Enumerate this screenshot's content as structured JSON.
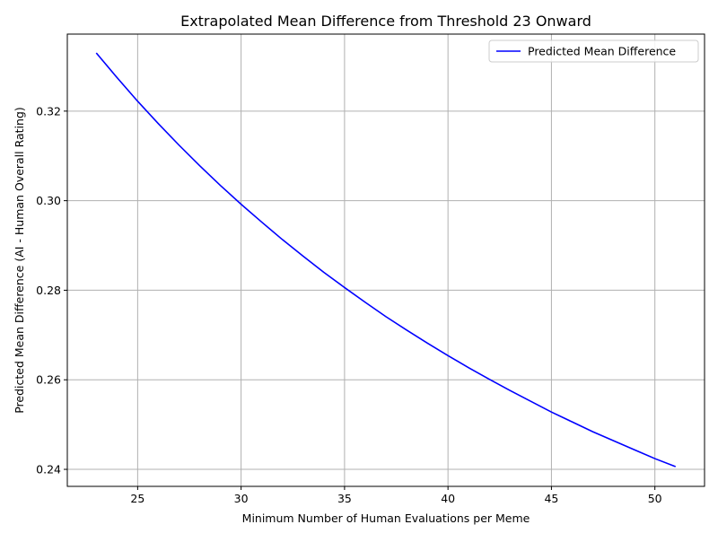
{
  "chart_data": {
    "type": "line",
    "title": "Extrapolated Mean Difference from Threshold 23 Onward",
    "xlabel": "Minimum Number of Human Evaluations per Meme",
    "ylabel": "Predicted Mean Difference (AI - Human Overall Rating)",
    "xlim": [
      21.6,
      52.4
    ],
    "ylim": [
      0.2362,
      0.3372
    ],
    "x_ticks": [
      25,
      30,
      35,
      40,
      45,
      50
    ],
    "y_ticks": [
      0.24,
      0.26,
      0.28,
      0.3,
      0.32
    ],
    "x_tick_labels": [
      "25",
      "30",
      "35",
      "40",
      "45",
      "50"
    ],
    "y_tick_labels": [
      "0.24",
      "0.26",
      "0.28",
      "0.30",
      "0.32"
    ],
    "grid": true,
    "legend_position": "top-right",
    "series": [
      {
        "name": "Predicted Mean Difference",
        "color": "#0000ff",
        "x": [
          23,
          24,
          25,
          26,
          27,
          28,
          29,
          30,
          31,
          32,
          33,
          34,
          35,
          36,
          37,
          38,
          39,
          40,
          41,
          42,
          43,
          44,
          45,
          46,
          47,
          48,
          49,
          50,
          51
        ],
        "y": [
          0.333,
          0.3275,
          0.3222,
          0.3172,
          0.3124,
          0.3078,
          0.3034,
          0.2992,
          0.2952,
          0.2913,
          0.2876,
          0.284,
          0.2806,
          0.2773,
          0.2741,
          0.2711,
          0.2682,
          0.2654,
          0.2627,
          0.2601,
          0.2576,
          0.2552,
          0.2528,
          0.2506,
          0.2484,
          0.2464,
          0.2444,
          0.2424,
          0.2406
        ]
      }
    ]
  }
}
